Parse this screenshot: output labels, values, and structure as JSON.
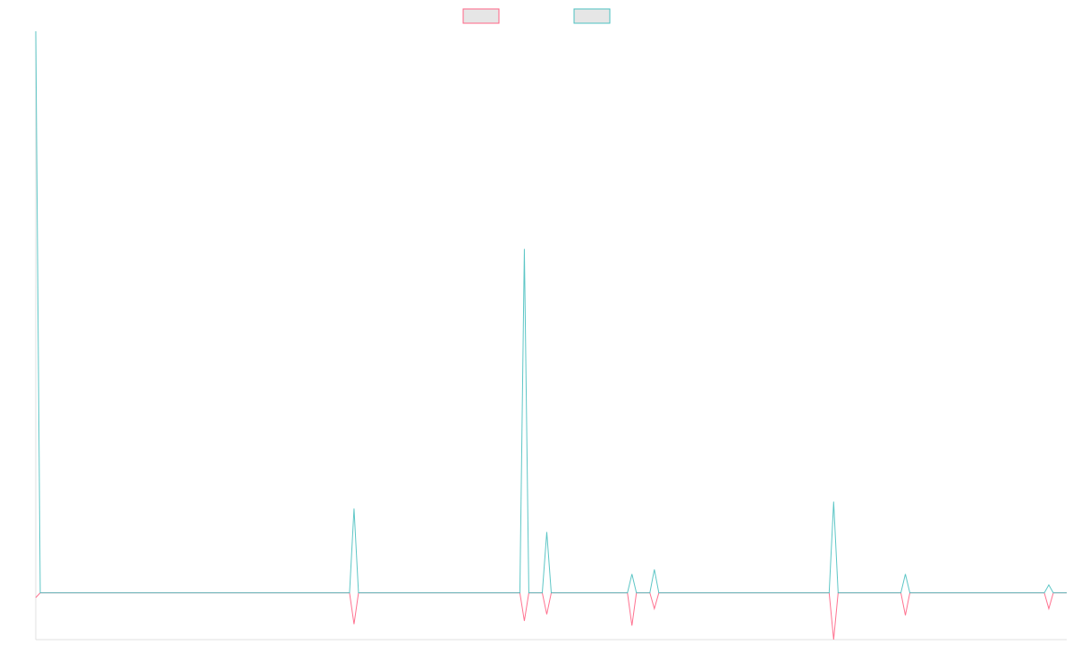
{
  "chart_data": {
    "type": "line",
    "x": [
      0,
      1,
      70,
      71,
      72,
      108,
      109,
      110,
      113,
      114,
      115,
      132,
      133,
      134,
      137,
      138,
      139,
      177,
      178,
      179,
      193,
      194,
      195,
      225,
      226,
      227,
      230
    ],
    "xlim": [
      0,
      230
    ],
    "ylim": [
      -10,
      120
    ],
    "series": [
      {
        "color": "#ff6384",
        "values": [
          -1,
          0,
          0,
          -6.7,
          0,
          0,
          -6,
          0,
          0,
          -4.6,
          0,
          0,
          -7,
          0,
          0,
          -3.4,
          0,
          0,
          -10,
          0,
          0,
          -4.8,
          0,
          0,
          -3.4,
          0,
          0
        ]
      },
      {
        "color": "#4bc0c0",
        "values": [
          120,
          0,
          0,
          18,
          0,
          0,
          73.5,
          0,
          0,
          13,
          0,
          0,
          4,
          0,
          0,
          5,
          0,
          0,
          19.5,
          0,
          0,
          4,
          0,
          0,
          1.7,
          0,
          0
        ]
      }
    ]
  }
}
